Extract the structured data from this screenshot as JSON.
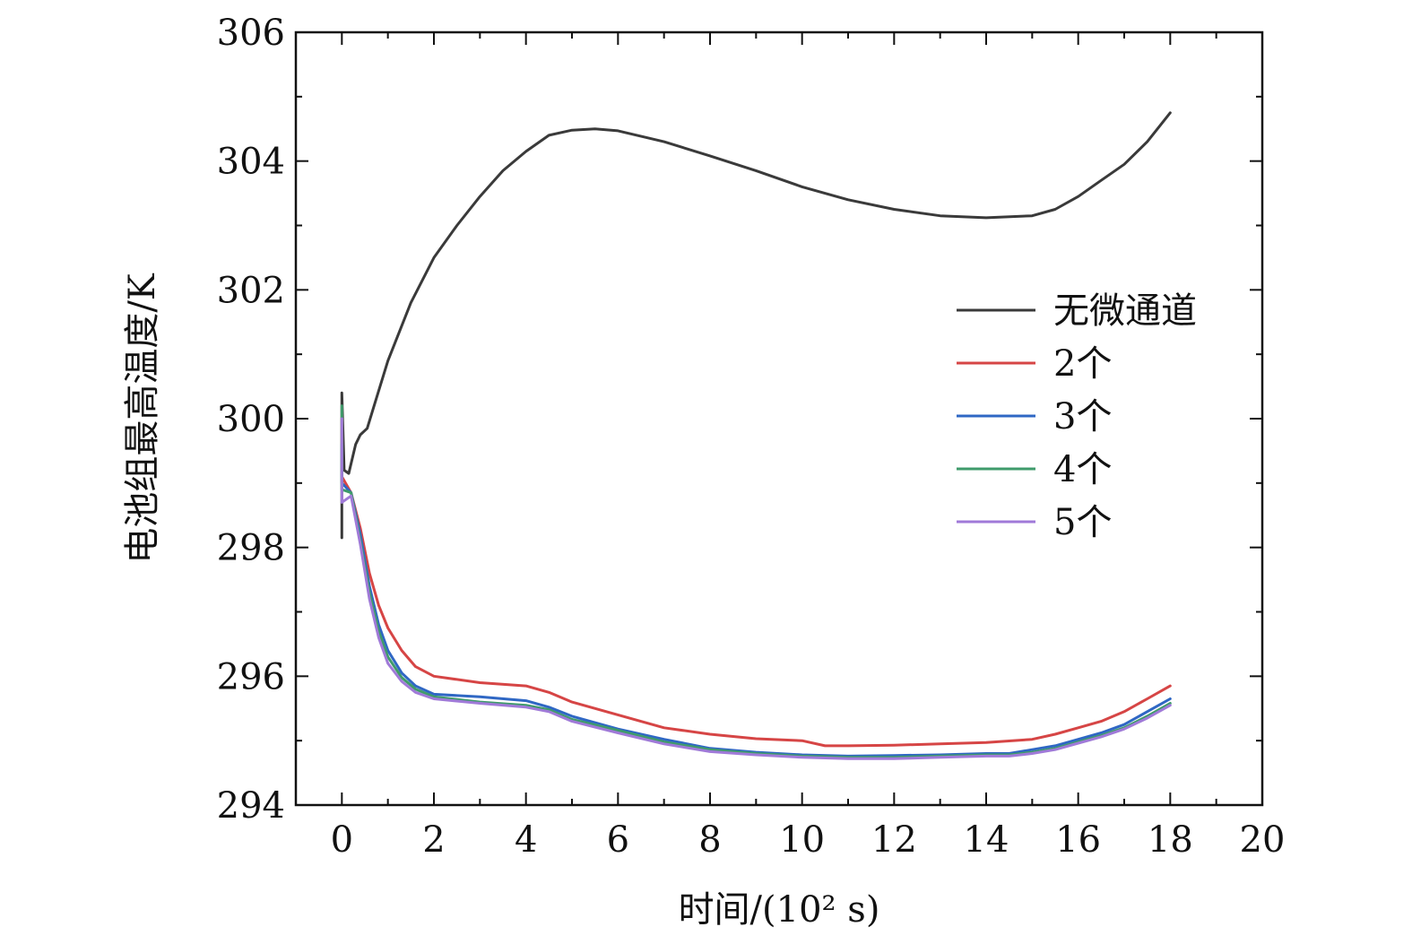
{
  "chart_data": {
    "type": "line",
    "title": "",
    "xlabel": "时间/(10² s)",
    "ylabel": "电池组最高温度/K",
    "xlim": [
      -1,
      20
    ],
    "ylim": [
      294,
      306
    ],
    "xticks": [
      0,
      2,
      4,
      6,
      8,
      10,
      12,
      14,
      16,
      18,
      20
    ],
    "yticks": [
      294,
      296,
      298,
      300,
      302,
      304,
      306
    ],
    "grid": false,
    "legend_position": "center-right",
    "series": [
      {
        "name": "无微通道",
        "color": "#3a3a3a",
        "points": [
          [
            0,
            298.15
          ],
          [
            0,
            300.4
          ],
          [
            0.05,
            299.2
          ],
          [
            0.15,
            299.15
          ],
          [
            0.3,
            299.6
          ],
          [
            0.4,
            299.75
          ],
          [
            0.55,
            299.85
          ],
          [
            0.7,
            300.2
          ],
          [
            1,
            300.9
          ],
          [
            1.5,
            301.8
          ],
          [
            2,
            302.5
          ],
          [
            2.5,
            303.0
          ],
          [
            3,
            303.45
          ],
          [
            3.5,
            303.85
          ],
          [
            4,
            304.15
          ],
          [
            4.5,
            304.4
          ],
          [
            5,
            304.48
          ],
          [
            5.5,
            304.5
          ],
          [
            6,
            304.47
          ],
          [
            7,
            304.3
          ],
          [
            8,
            304.08
          ],
          [
            9,
            303.85
          ],
          [
            10,
            303.6
          ],
          [
            11,
            303.4
          ],
          [
            12,
            303.25
          ],
          [
            13,
            303.15
          ],
          [
            14,
            303.12
          ],
          [
            15,
            303.15
          ],
          [
            15.5,
            303.25
          ],
          [
            16,
            303.45
          ],
          [
            16.5,
            303.7
          ],
          [
            17,
            303.95
          ],
          [
            17.5,
            304.3
          ],
          [
            18,
            304.75
          ]
        ]
      },
      {
        "name": "2个",
        "color": "#d64545",
        "points": [
          [
            0,
            300.0
          ],
          [
            0,
            299.1
          ],
          [
            0.2,
            298.85
          ],
          [
            0.4,
            298.3
          ],
          [
            0.6,
            297.6
          ],
          [
            0.8,
            297.1
          ],
          [
            1,
            296.75
          ],
          [
            1.3,
            296.4
          ],
          [
            1.6,
            296.15
          ],
          [
            2,
            296.0
          ],
          [
            3,
            295.9
          ],
          [
            4,
            295.85
          ],
          [
            4.5,
            295.75
          ],
          [
            5,
            295.6
          ],
          [
            6,
            295.4
          ],
          [
            7,
            295.2
          ],
          [
            8,
            295.1
          ],
          [
            9,
            295.03
          ],
          [
            10,
            295.0
          ],
          [
            10.5,
            294.92
          ],
          [
            11,
            294.92
          ],
          [
            12,
            294.93
          ],
          [
            13,
            294.95
          ],
          [
            14,
            294.97
          ],
          [
            15,
            295.02
          ],
          [
            15.5,
            295.1
          ],
          [
            16,
            295.2
          ],
          [
            16.5,
            295.3
          ],
          [
            17,
            295.45
          ],
          [
            17.5,
            295.65
          ],
          [
            18,
            295.85
          ]
        ]
      },
      {
        "name": "3个",
        "color": "#2f67c4",
        "points": [
          [
            0,
            299.6
          ],
          [
            0,
            299.0
          ],
          [
            0.2,
            298.85
          ],
          [
            0.4,
            298.2
          ],
          [
            0.6,
            297.4
          ],
          [
            0.8,
            296.8
          ],
          [
            1,
            296.4
          ],
          [
            1.3,
            296.05
          ],
          [
            1.6,
            295.85
          ],
          [
            2,
            295.72
          ],
          [
            3,
            295.68
          ],
          [
            4,
            295.62
          ],
          [
            4.5,
            295.52
          ],
          [
            5,
            295.38
          ],
          [
            6,
            295.18
          ],
          [
            7,
            295.02
          ],
          [
            8,
            294.88
          ],
          [
            9,
            294.82
          ],
          [
            10,
            294.78
          ],
          [
            11,
            294.76
          ],
          [
            12,
            294.77
          ],
          [
            13,
            294.78
          ],
          [
            14,
            294.8
          ],
          [
            14.5,
            294.8
          ],
          [
            15,
            294.86
          ],
          [
            15.5,
            294.92
          ],
          [
            16,
            295.02
          ],
          [
            16.5,
            295.12
          ],
          [
            17,
            295.25
          ],
          [
            17.5,
            295.45
          ],
          [
            18,
            295.65
          ]
        ]
      },
      {
        "name": "4个",
        "color": "#3f9b6b",
        "points": [
          [
            0,
            300.2
          ],
          [
            0,
            298.9
          ],
          [
            0.2,
            298.85
          ],
          [
            0.4,
            298.1
          ],
          [
            0.6,
            297.3
          ],
          [
            0.8,
            296.7
          ],
          [
            1,
            296.3
          ],
          [
            1.3,
            295.98
          ],
          [
            1.6,
            295.8
          ],
          [
            2,
            295.68
          ],
          [
            3,
            295.6
          ],
          [
            4,
            295.55
          ],
          [
            4.5,
            295.48
          ],
          [
            5,
            295.33
          ],
          [
            6,
            295.16
          ],
          [
            7,
            294.98
          ],
          [
            8,
            294.86
          ],
          [
            9,
            294.8
          ],
          [
            10,
            294.76
          ],
          [
            11,
            294.74
          ],
          [
            12,
            294.74
          ],
          [
            13,
            294.76
          ],
          [
            14,
            294.78
          ],
          [
            14.5,
            294.78
          ],
          [
            15,
            294.82
          ],
          [
            15.5,
            294.88
          ],
          [
            16,
            294.98
          ],
          [
            16.5,
            295.08
          ],
          [
            17,
            295.2
          ],
          [
            17.5,
            295.38
          ],
          [
            18,
            295.58
          ]
        ]
      },
      {
        "name": "5个",
        "color": "#a07ad8",
        "points": [
          [
            0,
            300.0
          ],
          [
            0,
            298.7
          ],
          [
            0.2,
            298.8
          ],
          [
            0.4,
            298.05
          ],
          [
            0.6,
            297.2
          ],
          [
            0.8,
            296.6
          ],
          [
            1,
            296.2
          ],
          [
            1.3,
            295.92
          ],
          [
            1.6,
            295.75
          ],
          [
            2,
            295.65
          ],
          [
            3,
            295.58
          ],
          [
            4,
            295.52
          ],
          [
            4.5,
            295.45
          ],
          [
            5,
            295.3
          ],
          [
            6,
            295.12
          ],
          [
            7,
            294.95
          ],
          [
            8,
            294.83
          ],
          [
            9,
            294.78
          ],
          [
            10,
            294.74
          ],
          [
            11,
            294.72
          ],
          [
            12,
            294.72
          ],
          [
            13,
            294.74
          ],
          [
            14,
            294.76
          ],
          [
            14.5,
            294.76
          ],
          [
            15,
            294.8
          ],
          [
            15.5,
            294.86
          ],
          [
            16,
            294.96
          ],
          [
            16.5,
            295.06
          ],
          [
            17,
            295.18
          ],
          [
            17.5,
            295.35
          ],
          [
            18,
            295.55
          ]
        ]
      }
    ]
  }
}
